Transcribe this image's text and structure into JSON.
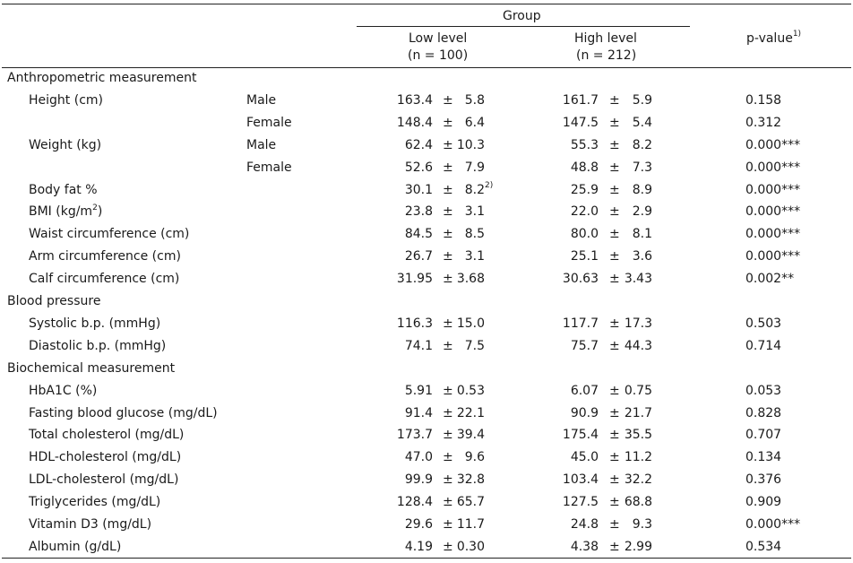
{
  "header": {
    "group_label": "Group",
    "low_label": "Low level",
    "low_n": "(n = 100)",
    "high_label": "High level",
    "high_n": "(n = 212)",
    "pvalue_label": "p-value",
    "pvalue_sup": "1)"
  },
  "pm_symbol": "±",
  "sections": [
    {
      "title": "Anthropometric measurement",
      "rows": [
        {
          "label": "Height (cm)",
          "sex": "Male",
          "low_mean": "163.4",
          "low_sd": "5.8",
          "high_mean": "161.7",
          "high_sd": "5.9",
          "p": "0.158"
        },
        {
          "label": "",
          "sex": "Female",
          "low_mean": "148.4",
          "low_sd": "6.4",
          "high_mean": "147.5",
          "high_sd": "5.4",
          "p": "0.312"
        },
        {
          "label": "Weight (kg)",
          "sex": "Male",
          "low_mean": "62.4",
          "low_sd": "10.3",
          "high_mean": "55.3",
          "high_sd": "8.2",
          "p": "0.000***"
        },
        {
          "label": "",
          "sex": "Female",
          "low_mean": "52.6",
          "low_sd": "7.9",
          "high_mean": "48.8",
          "high_sd": "7.3",
          "p": "0.000***"
        },
        {
          "label": "Body fat %",
          "sex": "",
          "low_mean": "30.1",
          "low_sd": "8.2",
          "low_sd_sup": "2)",
          "high_mean": "25.9",
          "high_sd": "8.9",
          "p": "0.000***"
        },
        {
          "label": "BMI (kg/m",
          "label_sup": "2",
          "label_after": ")",
          "sex": "",
          "low_mean": "23.8",
          "low_sd": "3.1",
          "high_mean": "22.0",
          "high_sd": "2.9",
          "p": "0.000***"
        },
        {
          "label": "Waist circumference (cm)",
          "sex": "",
          "low_mean": "84.5",
          "low_sd": "8.5",
          "high_mean": "80.0",
          "high_sd": "8.1",
          "p": "0.000***"
        },
        {
          "label": "Arm circumference (cm)",
          "sex": "",
          "low_mean": "26.7",
          "low_sd": "3.1",
          "high_mean": "25.1",
          "high_sd": "3.6",
          "p": "0.000***"
        },
        {
          "label": "Calf circumference (cm)",
          "sex": "",
          "low_mean": "31.95",
          "low_sd": "3.68",
          "high_mean": "30.63",
          "high_sd": "3.43",
          "p": "0.002**"
        }
      ]
    },
    {
      "title": "Blood pressure",
      "rows": [
        {
          "label": "Systolic b.p. (mmHg)",
          "sex": "",
          "low_mean": "116.3",
          "low_sd": "15.0",
          "high_mean": "117.7",
          "high_sd": "17.3",
          "p": "0.503"
        },
        {
          "label": "Diastolic b.p. (mmHg)",
          "sex": "",
          "low_mean": "74.1",
          "low_sd": "7.5",
          "high_mean": "75.7",
          "high_sd": "44.3",
          "p": "0.714"
        }
      ]
    },
    {
      "title": "Biochemical measurement",
      "rows": [
        {
          "label": "HbA1C (%)",
          "sex": "",
          "low_mean": "5.91",
          "low_sd": "0.53",
          "high_mean": "6.07",
          "high_sd": "0.75",
          "p": "0.053"
        },
        {
          "label": "Fasting blood glucose (mg/dL)",
          "sex": "",
          "low_mean": "91.4",
          "low_sd": "22.1",
          "high_mean": "90.9",
          "high_sd": "21.7",
          "p": "0.828"
        },
        {
          "label": "Total cholesterol (mg/dL)",
          "sex": "",
          "low_mean": "173.7",
          "low_sd": "39.4",
          "high_mean": "175.4",
          "high_sd": "35.5",
          "p": "0.707"
        },
        {
          "label": "HDL-cholesterol (mg/dL)",
          "sex": "",
          "low_mean": "47.0",
          "low_sd": "9.6",
          "high_mean": "45.0",
          "high_sd": "11.2",
          "p": "0.134"
        },
        {
          "label": "LDL-cholesterol (mg/dL)",
          "sex": "",
          "low_mean": "99.9",
          "low_sd": "32.8",
          "high_mean": "103.4",
          "high_sd": "32.2",
          "p": "0.376"
        },
        {
          "label": "Triglycerides (mg/dL)",
          "sex": "",
          "low_mean": "128.4",
          "low_sd": "65.7",
          "high_mean": "127.5",
          "high_sd": "68.8",
          "p": "0.909"
        },
        {
          "label": "Vitamin D3 (mg/dL)",
          "sex": "",
          "low_mean": "29.6",
          "low_sd": "11.7",
          "high_mean": "24.8",
          "high_sd": "9.3",
          "p": "0.000***"
        },
        {
          "label": "Albumin (g/dL)",
          "sex": "",
          "low_mean": "4.19",
          "low_sd": "0.30",
          "high_mean": "4.38",
          "high_sd": "2.99",
          "p": "0.534"
        }
      ]
    }
  ]
}
